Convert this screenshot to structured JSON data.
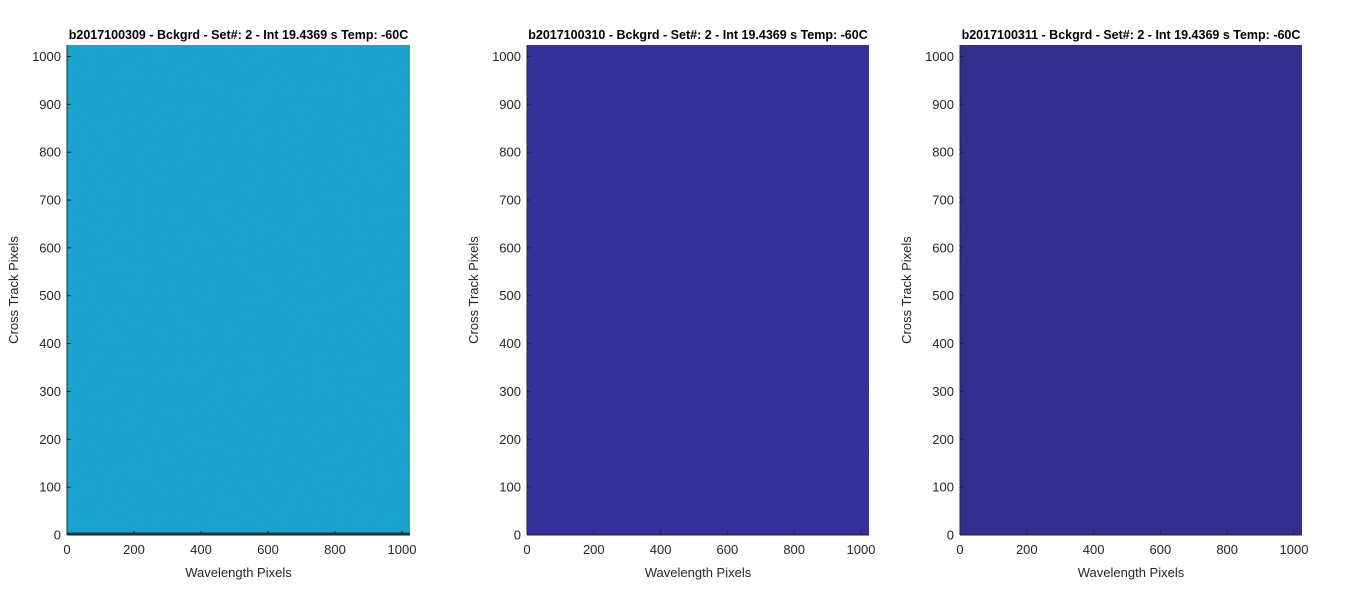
{
  "chart_data": [
    {
      "type": "heatmap",
      "title": "b2017100309 - Bckgrd - Set#: 2 - Int 19.4369 s Temp: -60C",
      "xlabel": "Wavelength Pixels",
      "ylabel": "Cross Track Pixels",
      "xlim": [
        0,
        1024
      ],
      "ylim": [
        0,
        1024
      ],
      "xticks": [
        0,
        200,
        400,
        600,
        800,
        1000
      ],
      "yticks": [
        0,
        100,
        200,
        300,
        400,
        500,
        600,
        700,
        800,
        900,
        1000
      ],
      "fill_color": "#1aa3cc",
      "noise_color": "#2bb0c6",
      "bottom_row_color": "#223a4a"
    },
    {
      "type": "heatmap",
      "title": "b2017100310 - Bckgrd - Set#: 2 - Int 19.4369 s Temp: -60C",
      "xlabel": "Wavelength Pixels",
      "ylabel": "Cross Track Pixels",
      "xlim": [
        0,
        1024
      ],
      "ylim": [
        0,
        1024
      ],
      "xticks": [
        0,
        200,
        400,
        600,
        800,
        1000
      ],
      "yticks": [
        0,
        100,
        200,
        300,
        400,
        500,
        600,
        700,
        800,
        900,
        1000
      ],
      "fill_color": "#34329a",
      "noise_color": "#3a38a2",
      "bottom_row_color": "#34329a"
    },
    {
      "type": "heatmap",
      "title": "b2017100311 - Bckgrd - Set#: 2 - Int 19.4369 s Temp: -60C",
      "xlabel": "Wavelength Pixels",
      "ylabel": "Cross Track Pixels",
      "xlim": [
        0,
        1024
      ],
      "ylim": [
        0,
        1024
      ],
      "xticks": [
        0,
        200,
        400,
        600,
        800,
        1000
      ],
      "yticks": [
        0,
        100,
        200,
        300,
        400,
        500,
        600,
        700,
        800,
        900,
        1000
      ],
      "fill_color": "#322e8e",
      "noise_color": "#363296",
      "bottom_row_color": "#322e8e"
    }
  ]
}
